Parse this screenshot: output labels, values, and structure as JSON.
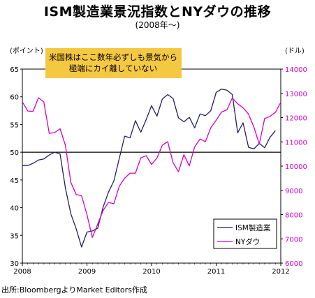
{
  "title": "ISM製造業景況指数とNYダウの推移",
  "subtitle": "(2008年〜)",
  "left_axis_unit": "(ポイント)",
  "right_axis_unit": "(ドル)",
  "note_lines": [
    "米国株はここ数年必ずしも景気から",
    "極端にカイ離していない"
  ],
  "source": "出所:BloombergよりMarket Editors作成",
  "colors": {
    "ism": "#1f1f66",
    "dow": "#d400c8",
    "note_bg": "#f5c842",
    "reference_line": "#000000"
  },
  "chart_data": {
    "type": "line",
    "x_ticks": [
      "2008",
      "2009",
      "2010",
      "2011",
      "2012"
    ],
    "xlim": [
      "2008-01",
      "2012-01"
    ],
    "y_left": {
      "ticks": [
        "65",
        "60",
        "55",
        "50",
        "45",
        "40",
        "35",
        "30"
      ],
      "ylim": [
        30,
        65
      ]
    },
    "y_right": {
      "ticks": [
        "14000",
        "13000",
        "12000",
        "11000",
        "10000",
        "9000",
        "8000",
        "7000",
        "6000"
      ],
      "ylim": [
        6000,
        14000
      ]
    },
    "reference_line": {
      "axis": "left",
      "value": 50
    },
    "legend": {
      "position": "bottom-right"
    },
    "series": [
      {
        "name": "ISM製造業",
        "axis": "left",
        "points": [
          [
            "2008-01",
            47.6
          ],
          [
            "2008-02",
            47.6
          ],
          [
            "2008-03",
            48.0
          ],
          [
            "2008-04",
            48.6
          ],
          [
            "2008-05",
            48.8
          ],
          [
            "2008-06",
            49.5
          ],
          [
            "2008-07",
            50.0
          ],
          [
            "2008-08",
            49.7
          ],
          [
            "2008-09",
            43.5
          ],
          [
            "2008-10",
            38.9
          ],
          [
            "2008-11",
            36.2
          ],
          [
            "2008-12",
            32.9
          ],
          [
            "2009-01",
            35.6
          ],
          [
            "2009-02",
            35.8
          ],
          [
            "2009-03",
            36.3
          ],
          [
            "2009-04",
            40.1
          ],
          [
            "2009-05",
            42.8
          ],
          [
            "2009-06",
            44.8
          ],
          [
            "2009-07",
            48.9
          ],
          [
            "2009-08",
            52.9
          ],
          [
            "2009-09",
            52.6
          ],
          [
            "2009-10",
            55.7
          ],
          [
            "2009-11",
            53.6
          ],
          [
            "2009-12",
            55.9
          ],
          [
            "2010-01",
            58.4
          ],
          [
            "2010-02",
            56.5
          ],
          [
            "2010-03",
            59.6
          ],
          [
            "2010-04",
            60.4
          ],
          [
            "2010-05",
            59.7
          ],
          [
            "2010-06",
            56.2
          ],
          [
            "2010-07",
            55.5
          ],
          [
            "2010-08",
            56.3
          ],
          [
            "2010-09",
            54.4
          ],
          [
            "2010-10",
            56.9
          ],
          [
            "2010-11",
            56.6
          ],
          [
            "2010-12",
            57.5
          ],
          [
            "2011-01",
            60.8
          ],
          [
            "2011-02",
            61.4
          ],
          [
            "2011-03",
            61.2
          ],
          [
            "2011-04",
            60.4
          ],
          [
            "2011-05",
            53.5
          ],
          [
            "2011-06",
            55.3
          ],
          [
            "2011-07",
            50.9
          ],
          [
            "2011-08",
            50.6
          ],
          [
            "2011-09",
            51.6
          ],
          [
            "2011-10",
            50.8
          ],
          [
            "2011-11",
            52.7
          ],
          [
            "2011-12",
            53.9
          ]
        ]
      },
      {
        "name": "NYダウ",
        "axis": "right",
        "points": [
          [
            "2008-01",
            12650
          ],
          [
            "2008-02",
            12270
          ],
          [
            "2008-03",
            12260
          ],
          [
            "2008-04",
            12820
          ],
          [
            "2008-05",
            12640
          ],
          [
            "2008-06",
            11350
          ],
          [
            "2008-07",
            11380
          ],
          [
            "2008-08",
            11540
          ],
          [
            "2008-09",
            10850
          ],
          [
            "2008-10",
            9330
          ],
          [
            "2008-11",
            8830
          ],
          [
            "2008-12",
            8780
          ],
          [
            "2009-01",
            8000
          ],
          [
            "2009-02",
            7060
          ],
          [
            "2009-03",
            7610
          ],
          [
            "2009-04",
            8170
          ],
          [
            "2009-05",
            8500
          ],
          [
            "2009-06",
            8450
          ],
          [
            "2009-07",
            9170
          ],
          [
            "2009-08",
            9500
          ],
          [
            "2009-09",
            9710
          ],
          [
            "2009-10",
            9710
          ],
          [
            "2009-11",
            10340
          ],
          [
            "2009-12",
            10430
          ],
          [
            "2010-01",
            10070
          ],
          [
            "2010-02",
            10330
          ],
          [
            "2010-03",
            10860
          ],
          [
            "2010-04",
            11010
          ],
          [
            "2010-05",
            10140
          ],
          [
            "2010-06",
            9770
          ],
          [
            "2010-07",
            10470
          ],
          [
            "2010-08",
            10010
          ],
          [
            "2010-09",
            10790
          ],
          [
            "2010-10",
            11120
          ],
          [
            "2010-11",
            11010
          ],
          [
            "2010-12",
            11580
          ],
          [
            "2011-01",
            11890
          ],
          [
            "2011-02",
            12230
          ],
          [
            "2011-03",
            12320
          ],
          [
            "2011-04",
            12810
          ],
          [
            "2011-05",
            12570
          ],
          [
            "2011-06",
            12410
          ],
          [
            "2011-07",
            12140
          ],
          [
            "2011-08",
            11610
          ],
          [
            "2011-09",
            10910
          ],
          [
            "2011-10",
            11960
          ],
          [
            "2011-11",
            12050
          ],
          [
            "2011-12",
            12220
          ],
          [
            "2012-01",
            12630
          ]
        ]
      }
    ]
  }
}
